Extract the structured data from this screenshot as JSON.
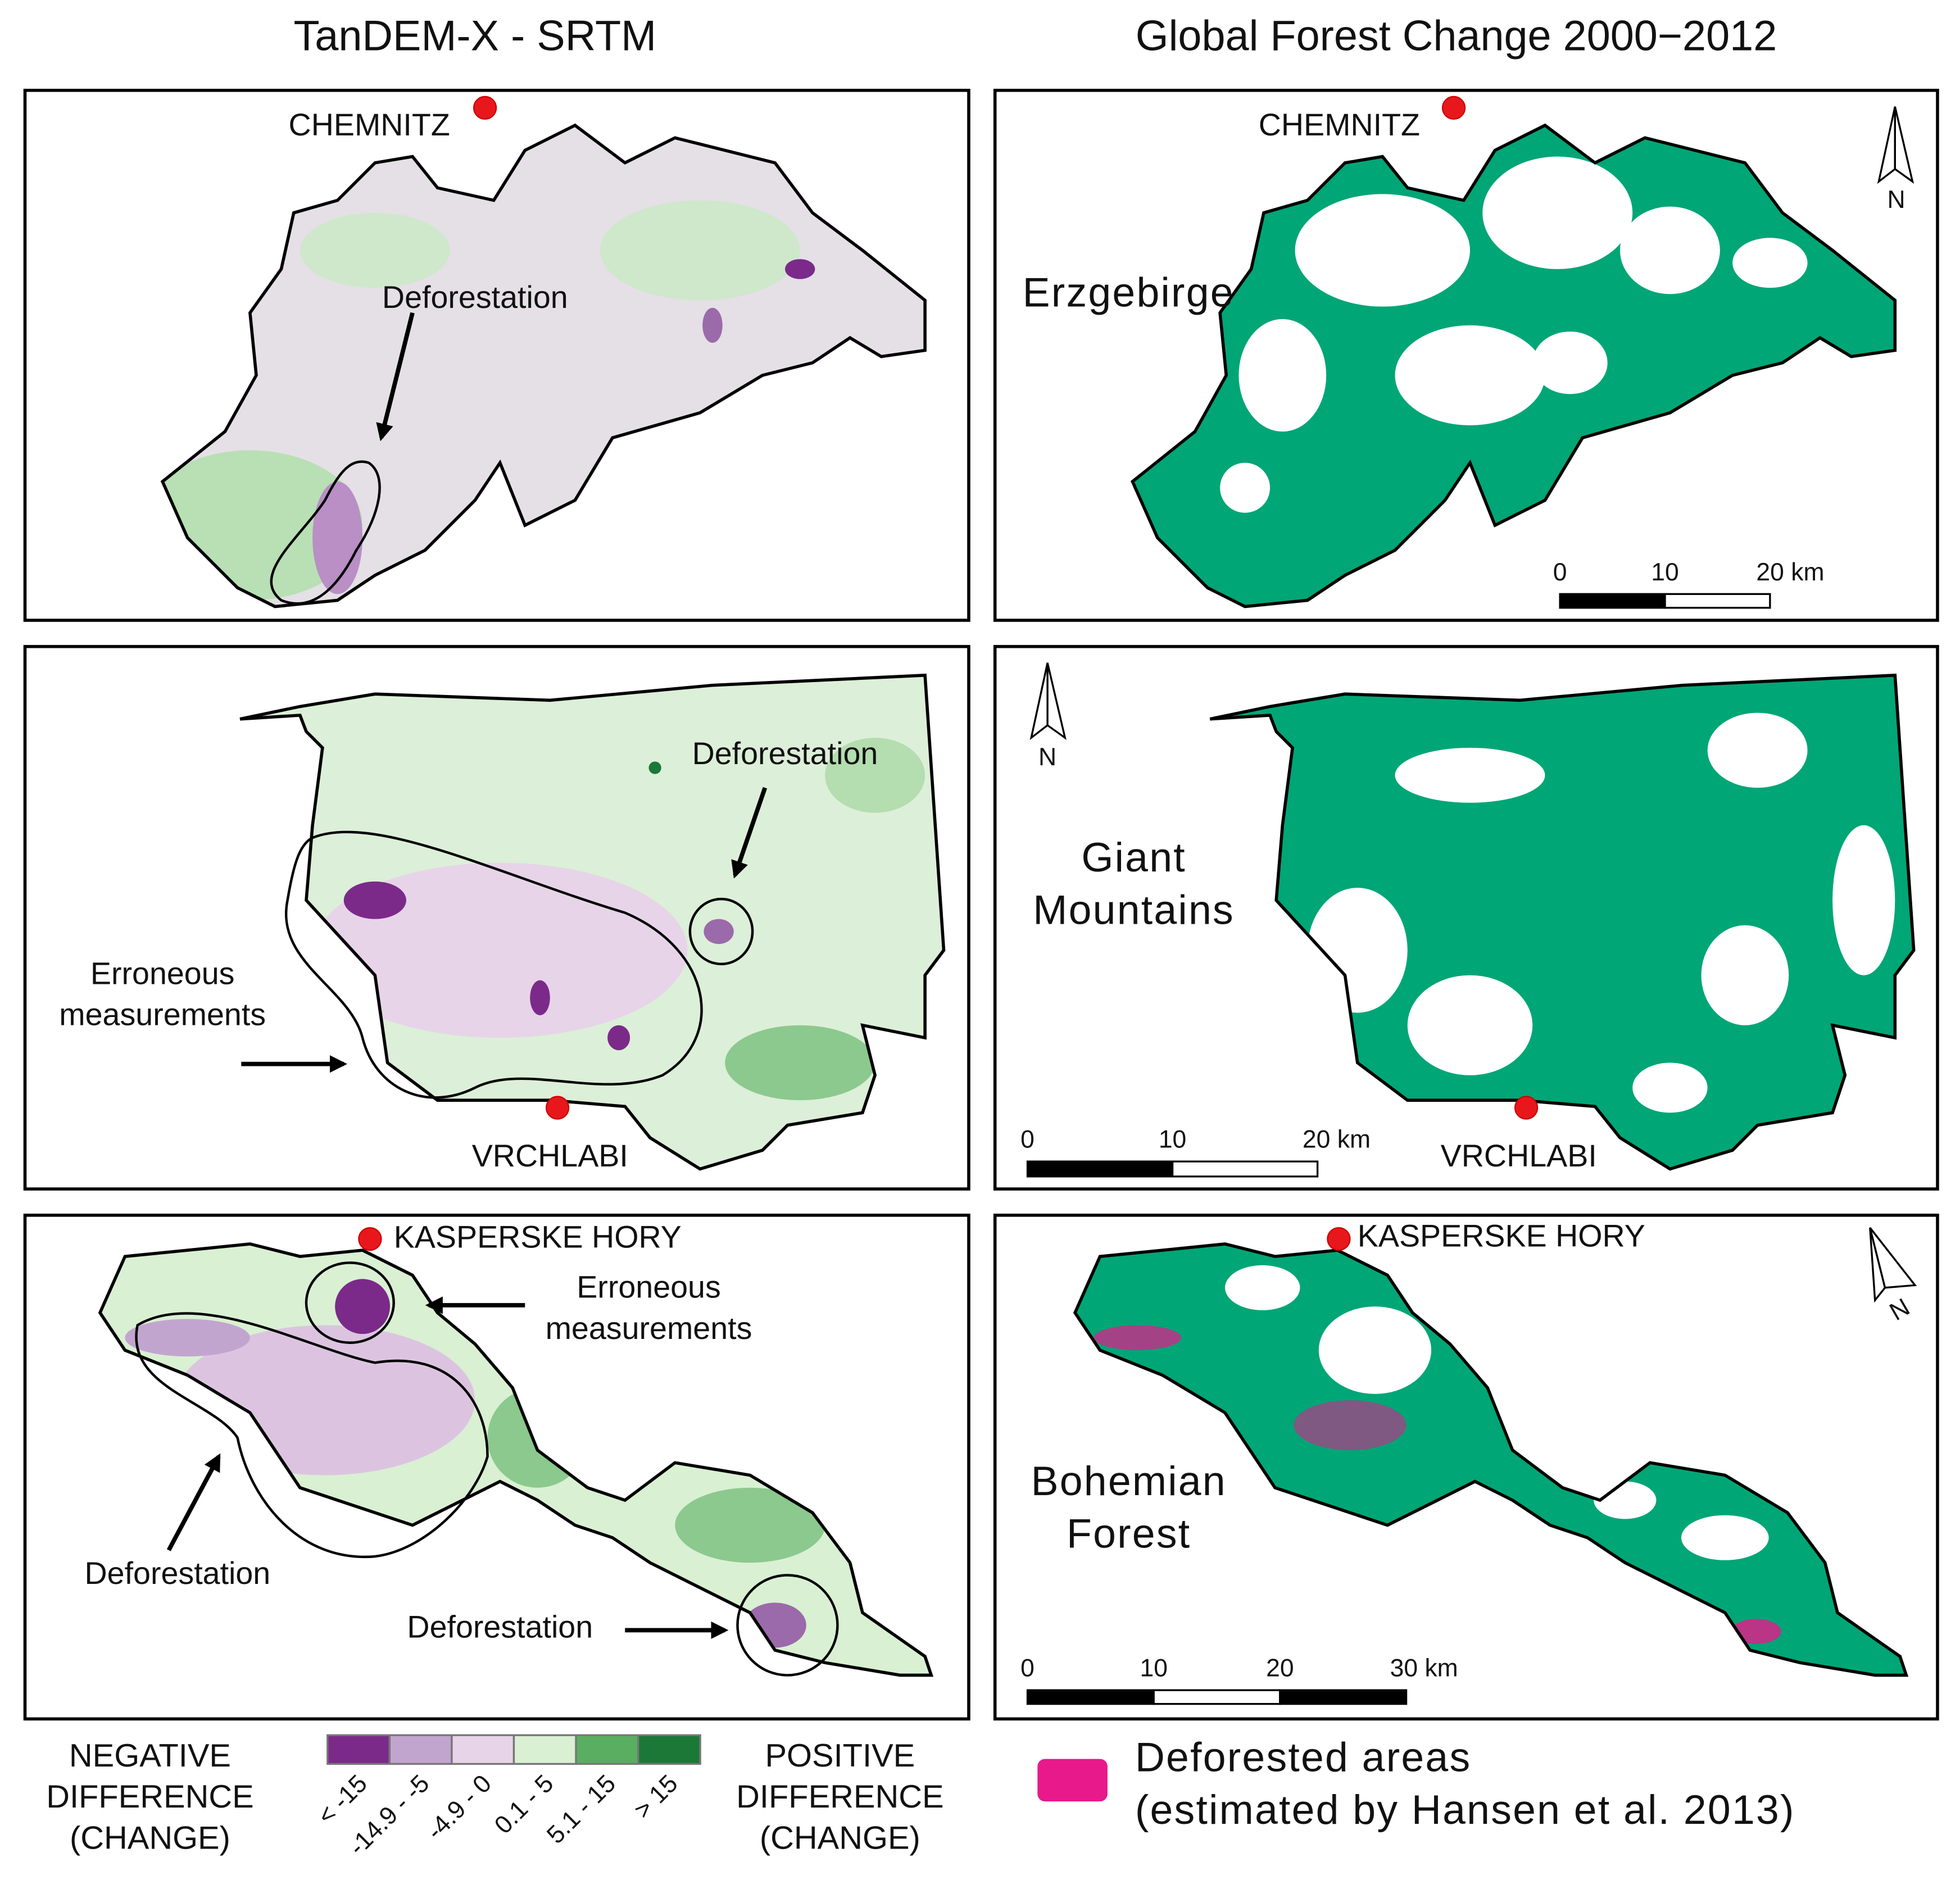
{
  "titles": {
    "left": "TanDEM-X - SRTM",
    "right": "Global Forest Change 2000−2012"
  },
  "rows": [
    {
      "left": {
        "city": "CHEMNITZ",
        "annotations": [
          [
            "Deforestation"
          ]
        ]
      },
      "right": {
        "city": "CHEMNITZ",
        "region": [
          "Erzgebirge"
        ],
        "north": "N",
        "scale": [
          "0",
          "10",
          "20 km"
        ]
      }
    },
    {
      "left": {
        "city": "VRCHLABI",
        "annotations": [
          [
            "Deforestation"
          ],
          [
            "Erroneous",
            "measurements"
          ]
        ]
      },
      "right": {
        "city": "VRCHLABI",
        "region": [
          "Giant",
          "Mountains"
        ],
        "north": "N",
        "scale": [
          "0",
          "10",
          "20 km"
        ]
      }
    },
    {
      "left": {
        "city": "KASPERSKE HORY",
        "annotations": [
          [
            "Erroneous",
            "measurements"
          ],
          [
            "Deforestation"
          ],
          [
            "Deforestation"
          ]
        ]
      },
      "right": {
        "city": "KASPERSKE HORY",
        "region": [
          "Bohemian",
          "Forest"
        ],
        "north": "N",
        "scale": [
          "0",
          "10",
          "20",
          "30 km"
        ]
      }
    }
  ],
  "legend": {
    "negative": [
      "NEGATIVE",
      "DIFFERENCE",
      "(CHANGE)"
    ],
    "positive": [
      "POSITIVE",
      "DIFFERENCE",
      "(CHANGE)"
    ],
    "classes": [
      {
        "label": "< -15",
        "color": "#7b2a8a"
      },
      {
        "label": "-14.9 - -5",
        "color": "#c2a5cf"
      },
      {
        "label": "-4.9 - 0",
        "color": "#e7d4e8"
      },
      {
        "label": "0.1 - 5",
        "color": "#d9f0d3"
      },
      {
        "label": "5.1 - 15",
        "color": "#5aae61"
      },
      {
        "label": "> 15",
        "color": "#1b7837"
      }
    ],
    "deforested": {
      "label": [
        "Deforested areas",
        "(estimated by Hansen et al. 2013)"
      ],
      "color": "#e8198b"
    }
  }
}
